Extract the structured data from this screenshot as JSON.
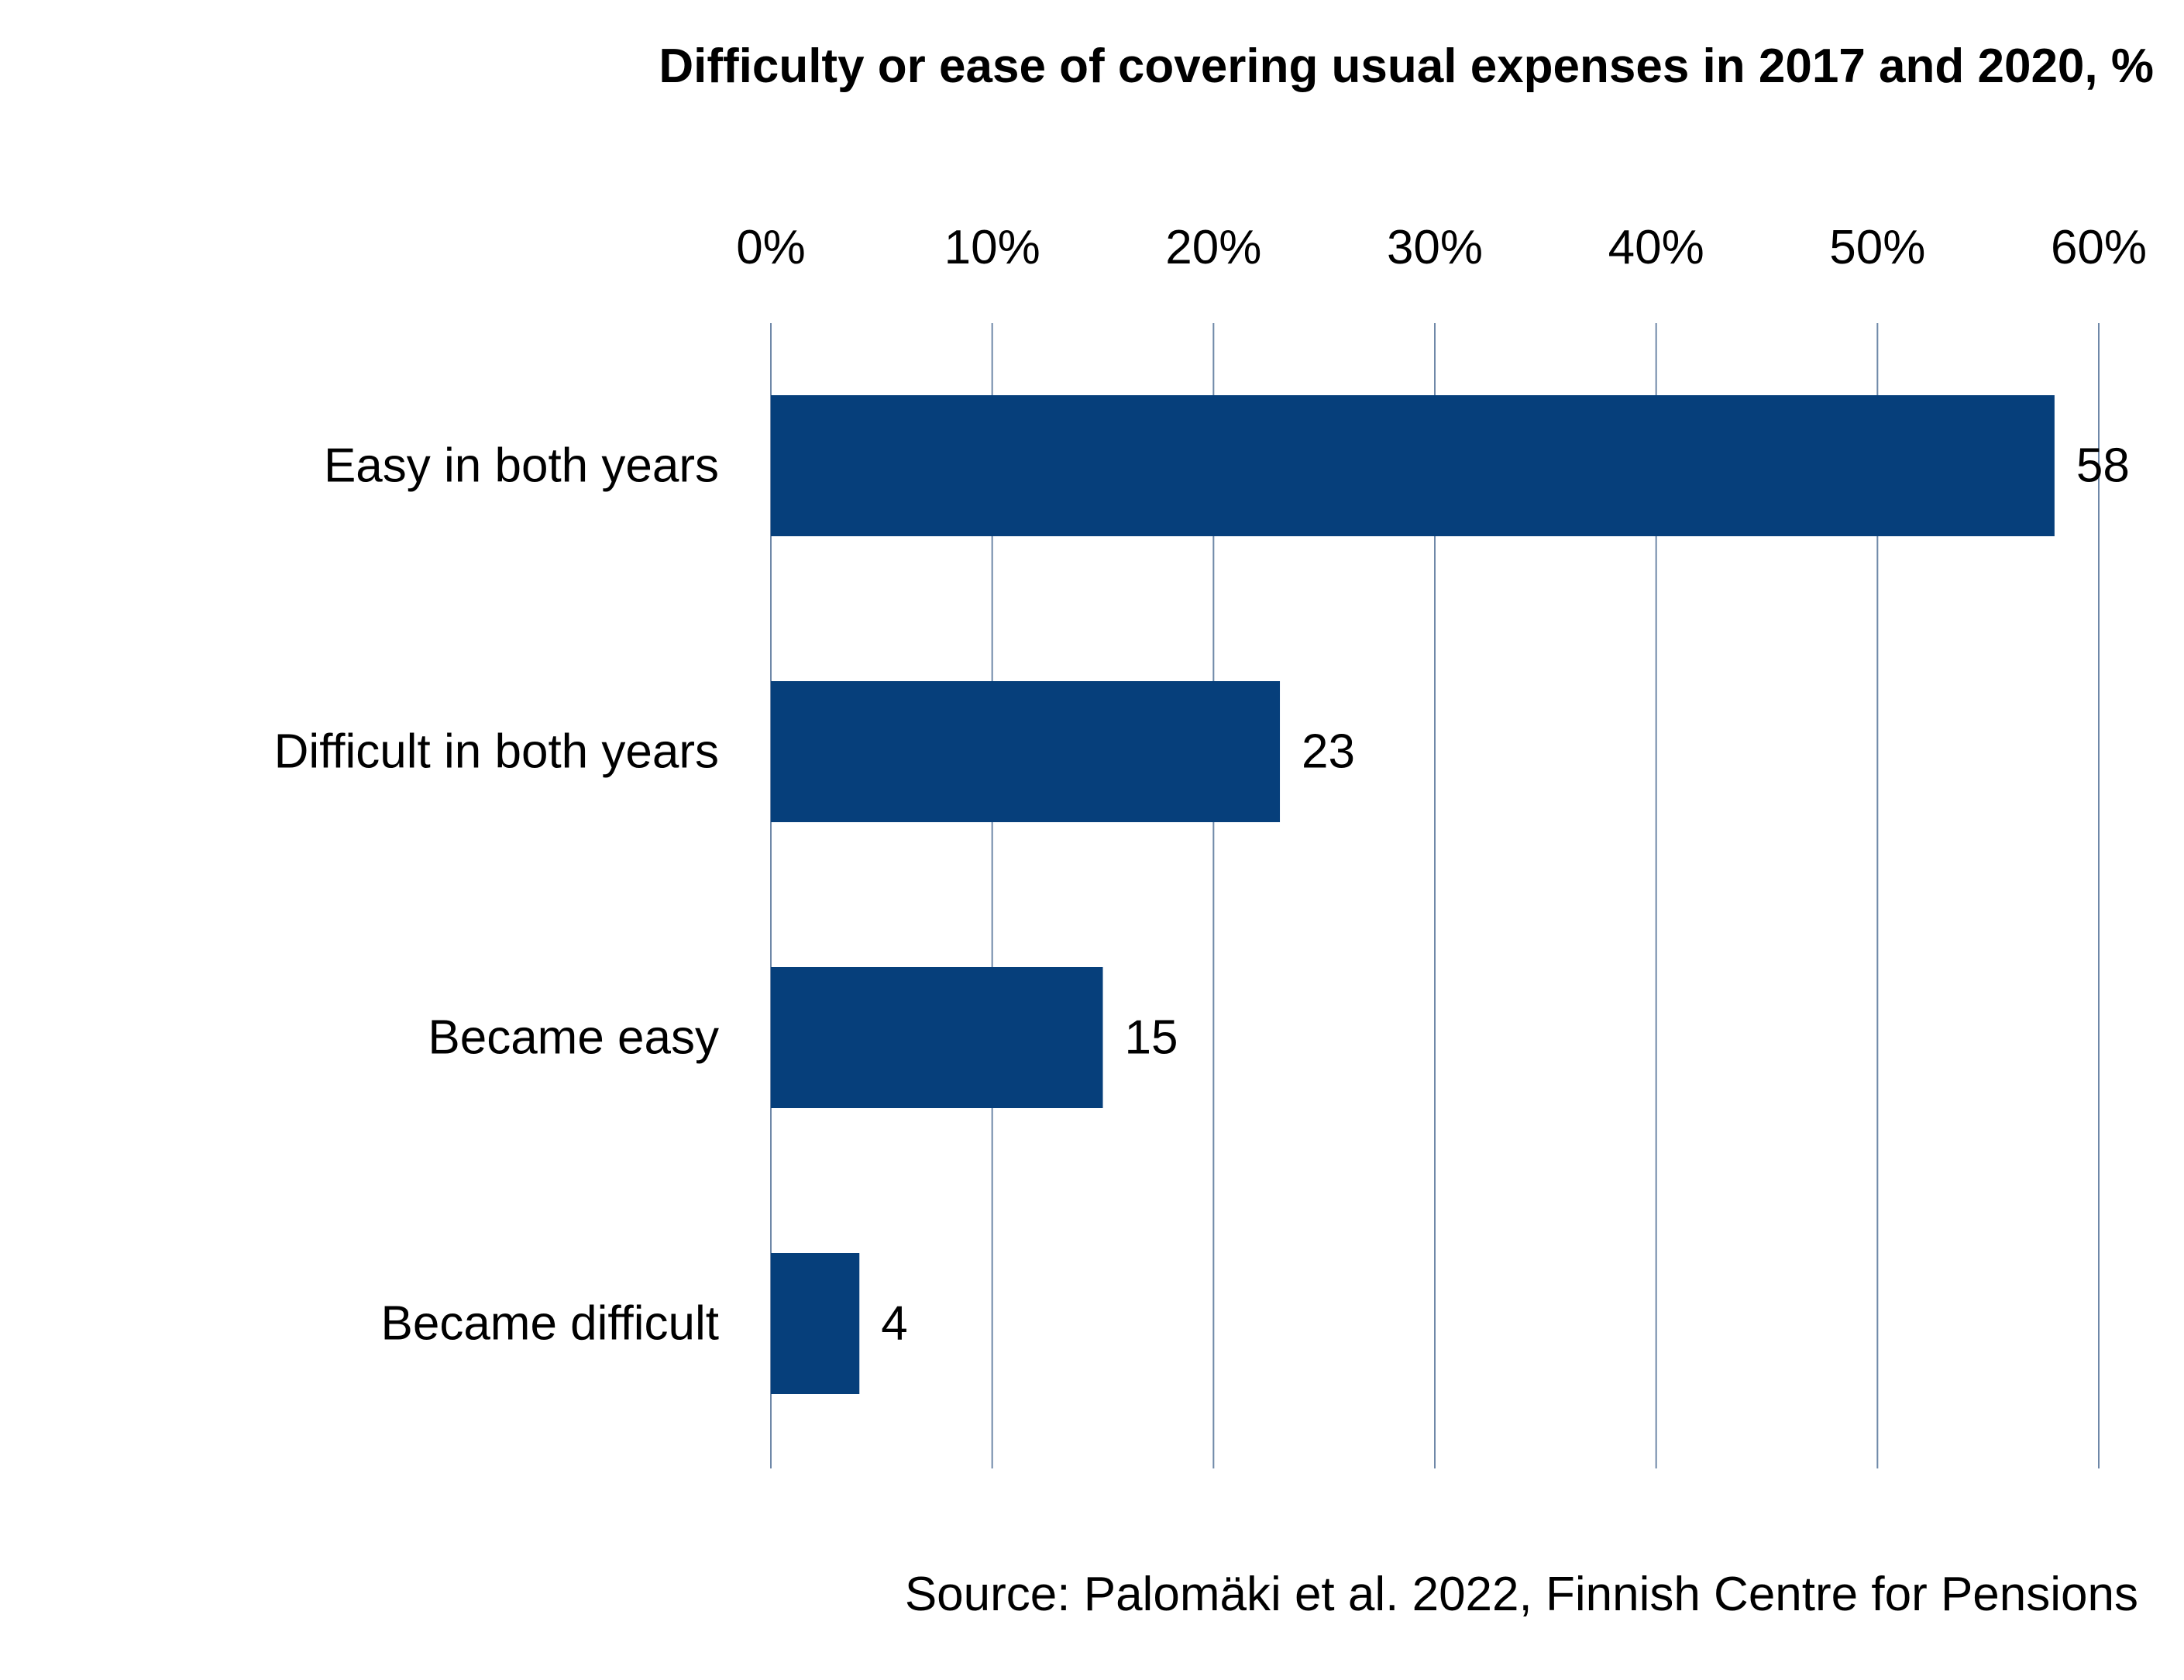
{
  "chart_data": {
    "type": "bar",
    "orientation": "horizontal",
    "title": "Difficulty or ease of covering usual expenses in 2017 and 2020, %",
    "categories": [
      "Easy in both years",
      "Difficult in both years",
      "Became easy",
      "Became difficult"
    ],
    "values": [
      58,
      23,
      15,
      4
    ],
    "xlim": [
      0,
      60
    ],
    "ticks": [
      0,
      10,
      20,
      30,
      40,
      50,
      60
    ],
    "tick_labels": [
      "0%",
      "10%",
      "20%",
      "30%",
      "40%",
      "50%",
      "60%"
    ],
    "axis_position": "top",
    "grid": true,
    "legend": "none",
    "source": "Source: Palomäki et al. 2022, Finnish Centre for Pensions",
    "colors": {
      "bar": "#063f7b",
      "grid": "#6f88a8",
      "text": "#000000"
    }
  }
}
